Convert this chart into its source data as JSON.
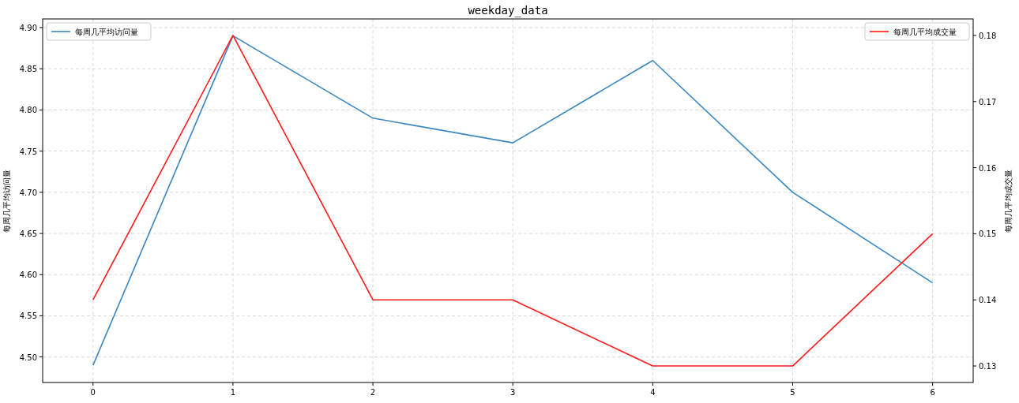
{
  "chart_data": {
    "type": "line",
    "title": "weekday_data",
    "ylabel": "每周几平均访问量",
    "y2label": "每周几平均成交量",
    "x": [
      0,
      1,
      2,
      3,
      4,
      5,
      6
    ],
    "series": [
      {
        "name": "每周几平均访问量",
        "color": "#3a87c2",
        "values": [
          4.49,
          4.89,
          4.79,
          4.76,
          4.86,
          4.7,
          4.59
        ]
      },
      {
        "name": "每周几平均成交量",
        "color": "#ff1a1a",
        "axis": "y2",
        "values": [
          0.14,
          0.18,
          0.14,
          0.14,
          0.13,
          0.13,
          0.15
        ]
      }
    ],
    "xlim": [
      -0.36,
      6.29
    ],
    "xticks": [
      0,
      1,
      2,
      3,
      4,
      5,
      6
    ],
    "ylim": [
      4.469,
      4.9105
    ],
    "yticks": [
      {
        "value": 4.5,
        "label": "4.50"
      },
      {
        "value": 4.55,
        "label": "4.55"
      },
      {
        "value": 4.6,
        "label": "4.60"
      },
      {
        "value": 4.65,
        "label": "4.65"
      },
      {
        "value": 4.7,
        "label": "4.70"
      },
      {
        "value": 4.75,
        "label": "4.75"
      },
      {
        "value": 4.8,
        "label": "4.80"
      },
      {
        "value": 4.85,
        "label": "4.85"
      },
      {
        "value": 4.9,
        "label": "4.90"
      }
    ],
    "y2lim": [
      0.1275,
      0.1825
    ],
    "y2ticks": [
      {
        "value": 0.13,
        "label": "0.13"
      },
      {
        "value": 0.14,
        "label": "0.14"
      },
      {
        "value": 0.15,
        "label": "0.15"
      },
      {
        "value": 0.16,
        "label": "0.16"
      },
      {
        "value": 0.17,
        "label": "0.17"
      },
      {
        "value": 0.18,
        "label": "0.18"
      }
    ],
    "grid": true,
    "legend": "top"
  }
}
